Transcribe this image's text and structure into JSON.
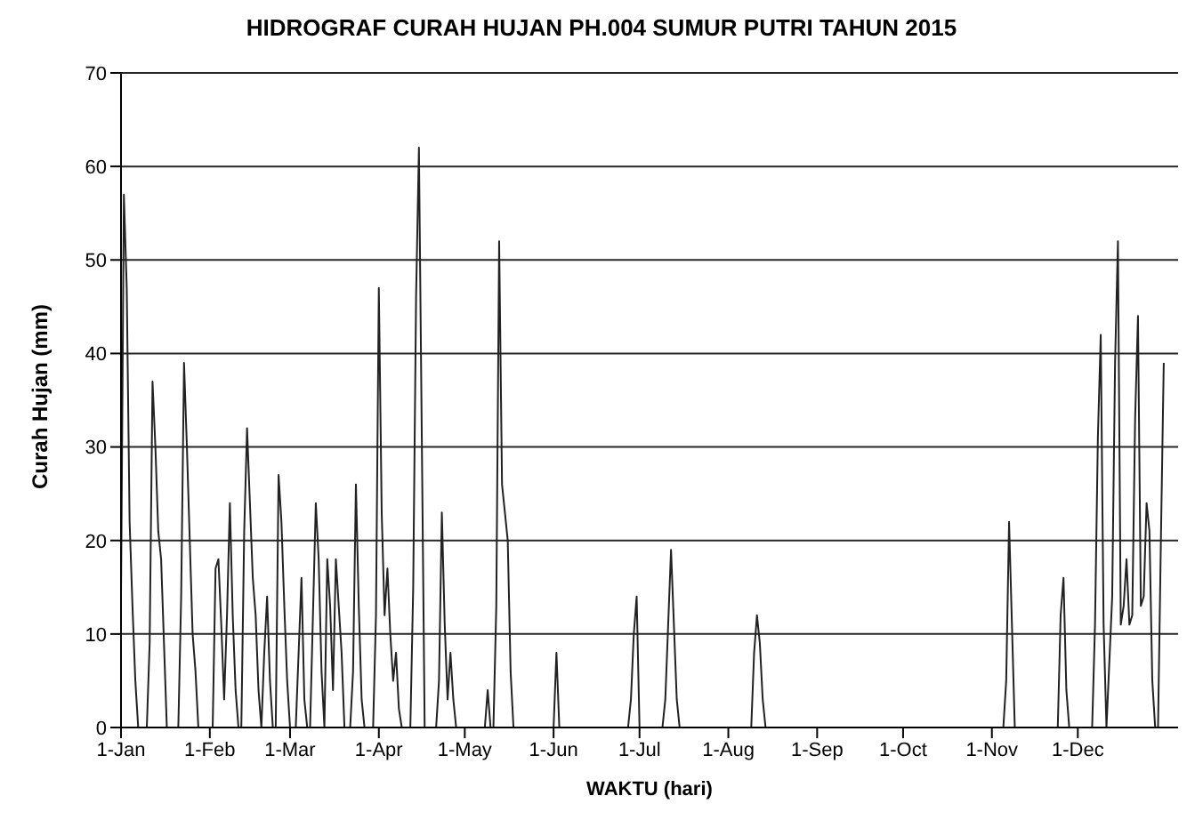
{
  "chart_data": {
    "type": "line",
    "title": "HIDROGRAF CURAH HUJAN PH.004 SUMUR PUTRI TAHUN 2015",
    "xlabel": "WAKTU (hari)",
    "ylabel": "Curah Hujan (mm)",
    "grid": "y",
    "legend": false,
    "marker": "none",
    "line_style": "solid",
    "xlim": [
      "2015-01-01",
      "2016-01-05"
    ],
    "xticks": [
      {
        "value": "2015-01-01",
        "label": "1-Jan"
      },
      {
        "value": "2015-02-01",
        "label": "1-Feb"
      },
      {
        "value": "2015-03-01",
        "label": "1-Mar"
      },
      {
        "value": "2015-04-01",
        "label": "1-Apr"
      },
      {
        "value": "2015-05-01",
        "label": "1-May"
      },
      {
        "value": "2015-06-01",
        "label": "1-Jun"
      },
      {
        "value": "2015-07-01",
        "label": "1-Jul"
      },
      {
        "value": "2015-08-01",
        "label": "1-Aug"
      },
      {
        "value": "2015-09-01",
        "label": "1-Sep"
      },
      {
        "value": "2015-10-01",
        "label": "1-Oct"
      },
      {
        "value": "2015-11-01",
        "label": "1-Nov"
      },
      {
        "value": "2015-12-01",
        "label": "1-Dec"
      }
    ],
    "ylim": [
      0,
      70
    ],
    "yticks": [
      0,
      10,
      20,
      30,
      40,
      50,
      60,
      70
    ],
    "series": [
      {
        "color": "#222222",
        "x": [
          "2015-01-01",
          "2015-01-02",
          "2015-01-03",
          "2015-01-04",
          "2015-01-05",
          "2015-01-06",
          "2015-01-07",
          "2015-01-10",
          "2015-01-11",
          "2015-01-12",
          "2015-01-13",
          "2015-01-14",
          "2015-01-15",
          "2015-01-16",
          "2015-01-17",
          "2015-01-21",
          "2015-01-22",
          "2015-01-23",
          "2015-01-24",
          "2015-01-25",
          "2015-01-26",
          "2015-01-27",
          "2015-01-28",
          "2015-02-02",
          "2015-02-03",
          "2015-02-04",
          "2015-02-05",
          "2015-02-06",
          "2015-02-07",
          "2015-02-08",
          "2015-02-09",
          "2015-02-10",
          "2015-02-11",
          "2015-02-12",
          "2015-02-13",
          "2015-02-14",
          "2015-02-15",
          "2015-02-16",
          "2015-02-17",
          "2015-02-18",
          "2015-02-19",
          "2015-02-20",
          "2015-02-21",
          "2015-02-22",
          "2015-02-23",
          "2015-02-24",
          "2015-02-25",
          "2015-02-26",
          "2015-02-27",
          "2015-02-28",
          "2015-03-01",
          "2015-03-03",
          "2015-03-04",
          "2015-03-05",
          "2015-03-06",
          "2015-03-07",
          "2015-03-08",
          "2015-03-09",
          "2015-03-10",
          "2015-03-11",
          "2015-03-12",
          "2015-03-13",
          "2015-03-14",
          "2015-03-15",
          "2015-03-16",
          "2015-03-17",
          "2015-03-18",
          "2015-03-19",
          "2015-03-20",
          "2015-03-22",
          "2015-03-23",
          "2015-03-24",
          "2015-03-25",
          "2015-03-26",
          "2015-03-27",
          "2015-03-30",
          "2015-03-31",
          "2015-04-01",
          "2015-04-02",
          "2015-04-03",
          "2015-04-04",
          "2015-04-05",
          "2015-04-06",
          "2015-04-07",
          "2015-04-08",
          "2015-04-09",
          "2015-04-12",
          "2015-04-13",
          "2015-04-14",
          "2015-04-15",
          "2015-04-16",
          "2015-04-17",
          "2015-04-21",
          "2015-04-22",
          "2015-04-23",
          "2015-04-24",
          "2015-04-25",
          "2015-04-26",
          "2015-04-27",
          "2015-04-28",
          "2015-05-08",
          "2015-05-09",
          "2015-05-10",
          "2015-05-11",
          "2015-05-12",
          "2015-05-13",
          "2015-05-14",
          "2015-05-15",
          "2015-05-16",
          "2015-05-17",
          "2015-05-18",
          "2015-06-01",
          "2015-06-02",
          "2015-06-03",
          "2015-06-27",
          "2015-06-28",
          "2015-06-29",
          "2015-06-30",
          "2015-07-01",
          "2015-07-09",
          "2015-07-10",
          "2015-07-11",
          "2015-07-12",
          "2015-07-13",
          "2015-07-14",
          "2015-07-15",
          "2015-08-09",
          "2015-08-10",
          "2015-08-11",
          "2015-08-12",
          "2015-08-13",
          "2015-08-14",
          "2015-11-05",
          "2015-11-06",
          "2015-11-07",
          "2015-11-08",
          "2015-11-09",
          "2015-11-24",
          "2015-11-25",
          "2015-11-26",
          "2015-11-27",
          "2015-11-28",
          "2015-12-06",
          "2015-12-07",
          "2015-12-08",
          "2015-12-09",
          "2015-12-10",
          "2015-12-11",
          "2015-12-12",
          "2015-12-13",
          "2015-12-14",
          "2015-12-15",
          "2015-12-16",
          "2015-12-17",
          "2015-12-18",
          "2015-12-19",
          "2015-12-20",
          "2015-12-21",
          "2015-12-22",
          "2015-12-23",
          "2015-12-24",
          "2015-12-25",
          "2015-12-26",
          "2015-12-27",
          "2015-12-28",
          "2015-12-29",
          "2015-12-30",
          "2015-12-31"
        ],
        "values": [
          14,
          57,
          47,
          22,
          13,
          5,
          0,
          0,
          9,
          37,
          30,
          21,
          18,
          9,
          0,
          0,
          14,
          39,
          30,
          20,
          10,
          6,
          0,
          0,
          17,
          18,
          11,
          3,
          12,
          24,
          12,
          4,
          0,
          0,
          21,
          32,
          24,
          16,
          12,
          4,
          0,
          8,
          14,
          5,
          0,
          0,
          27,
          22,
          13,
          5,
          0,
          0,
          8,
          16,
          3,
          0,
          0,
          12,
          24,
          18,
          6,
          0,
          18,
          13,
          4,
          18,
          13,
          8,
          0,
          0,
          6,
          26,
          13,
          3,
          0,
          0,
          12,
          47,
          23,
          12,
          17,
          10,
          5,
          8,
          2,
          0,
          0,
          15,
          46,
          62,
          31,
          0,
          0,
          5,
          23,
          11,
          3,
          8,
          3,
          0,
          0,
          4,
          0,
          0,
          13,
          52,
          26,
          23,
          20,
          6,
          0,
          0,
          8,
          0,
          0,
          3,
          10,
          14,
          0,
          0,
          3,
          11,
          19,
          11,
          3,
          0,
          0,
          8,
          12,
          9,
          3,
          0,
          0,
          5,
          22,
          11,
          0,
          0,
          12,
          16,
          4,
          0,
          0,
          11,
          31,
          42,
          11,
          0,
          7,
          14,
          39,
          52,
          11,
          13,
          18,
          11,
          12,
          33,
          44,
          13,
          14,
          24,
          21,
          5,
          0,
          0,
          20,
          39
        ]
      }
    ]
  }
}
